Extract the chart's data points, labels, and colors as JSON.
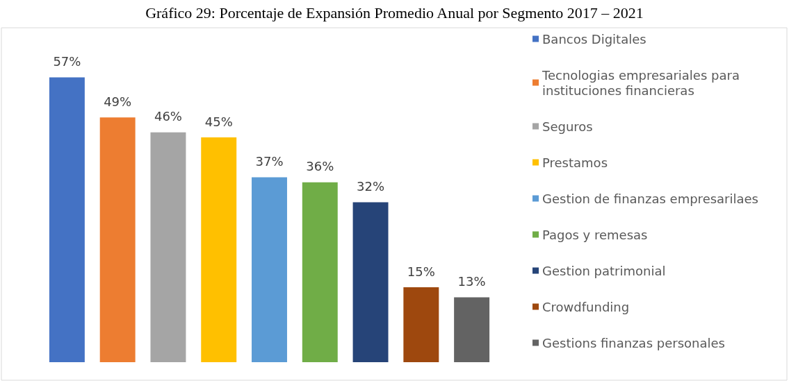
{
  "chart_data": {
    "type": "bar",
    "title": "Gráfico 29: Porcentaje de Expansión Promedio Anual por Segmento 2017 – 2021",
    "categories": [
      null,
      null,
      null,
      null,
      null,
      null,
      null,
      null,
      null
    ],
    "stacked": true,
    "legend": "right",
    "tick_labels": false,
    "series": [
      {
        "name": "Bancos Digitales",
        "color": "#4472c4",
        "values": [
          57,
          null,
          null,
          null,
          null,
          null,
          null,
          null,
          null
        ],
        "value_labels": [
          "57%",
          null,
          null,
          null,
          null,
          null,
          null,
          null,
          null
        ]
      },
      {
        "name": "Tecnologias empresariales para instituciones financieras",
        "color": "#ed7d31",
        "values": [
          null,
          49,
          null,
          null,
          null,
          null,
          null,
          null,
          null
        ],
        "value_labels": [
          null,
          "49%",
          null,
          null,
          null,
          null,
          null,
          null,
          null
        ]
      },
      {
        "name": "Seguros",
        "color": "#a5a5a5",
        "values": [
          null,
          null,
          46,
          null,
          null,
          null,
          null,
          null,
          null
        ],
        "value_labels": [
          null,
          null,
          "46%",
          null,
          null,
          null,
          null,
          null,
          null
        ]
      },
      {
        "name": "Prestamos",
        "color": "#ffc000",
        "values": [
          null,
          null,
          null,
          45,
          null,
          null,
          null,
          null,
          null
        ],
        "value_labels": [
          null,
          null,
          null,
          "45%",
          null,
          null,
          null,
          null,
          null
        ]
      },
      {
        "name": "Gestion de finanzas empresarilaes",
        "color": "#5b9bd5",
        "values": [
          null,
          null,
          null,
          null,
          37,
          null,
          null,
          null,
          null
        ],
        "value_labels": [
          null,
          null,
          null,
          null,
          "37%",
          null,
          null,
          null,
          null
        ]
      },
      {
        "name": "Pagos y remesas",
        "color": "#70ad47",
        "values": [
          null,
          null,
          null,
          null,
          null,
          36,
          null,
          null,
          null
        ],
        "value_labels": [
          null,
          null,
          null,
          null,
          null,
          "36%",
          null,
          null,
          null
        ]
      },
      {
        "name": "Gestion patrimonial",
        "color": "#264478",
        "values": [
          null,
          null,
          null,
          null,
          null,
          null,
          32,
          null,
          null
        ],
        "value_labels": [
          null,
          null,
          null,
          null,
          null,
          null,
          "32%",
          null,
          null
        ]
      },
      {
        "name": "Crowdfunding",
        "color": "#9e480e",
        "values": [
          null,
          null,
          null,
          null,
          null,
          null,
          null,
          15,
          null
        ],
        "value_labels": [
          null,
          null,
          null,
          null,
          null,
          null,
          null,
          "15%",
          null
        ]
      },
      {
        "name": "Gestions finanzas personales",
        "color": "#636363",
        "values": [
          null,
          null,
          null,
          null,
          null,
          null,
          null,
          null,
          13
        ],
        "value_labels": [
          null,
          null,
          null,
          null,
          null,
          null,
          null,
          null,
          "13%"
        ]
      }
    ]
  }
}
